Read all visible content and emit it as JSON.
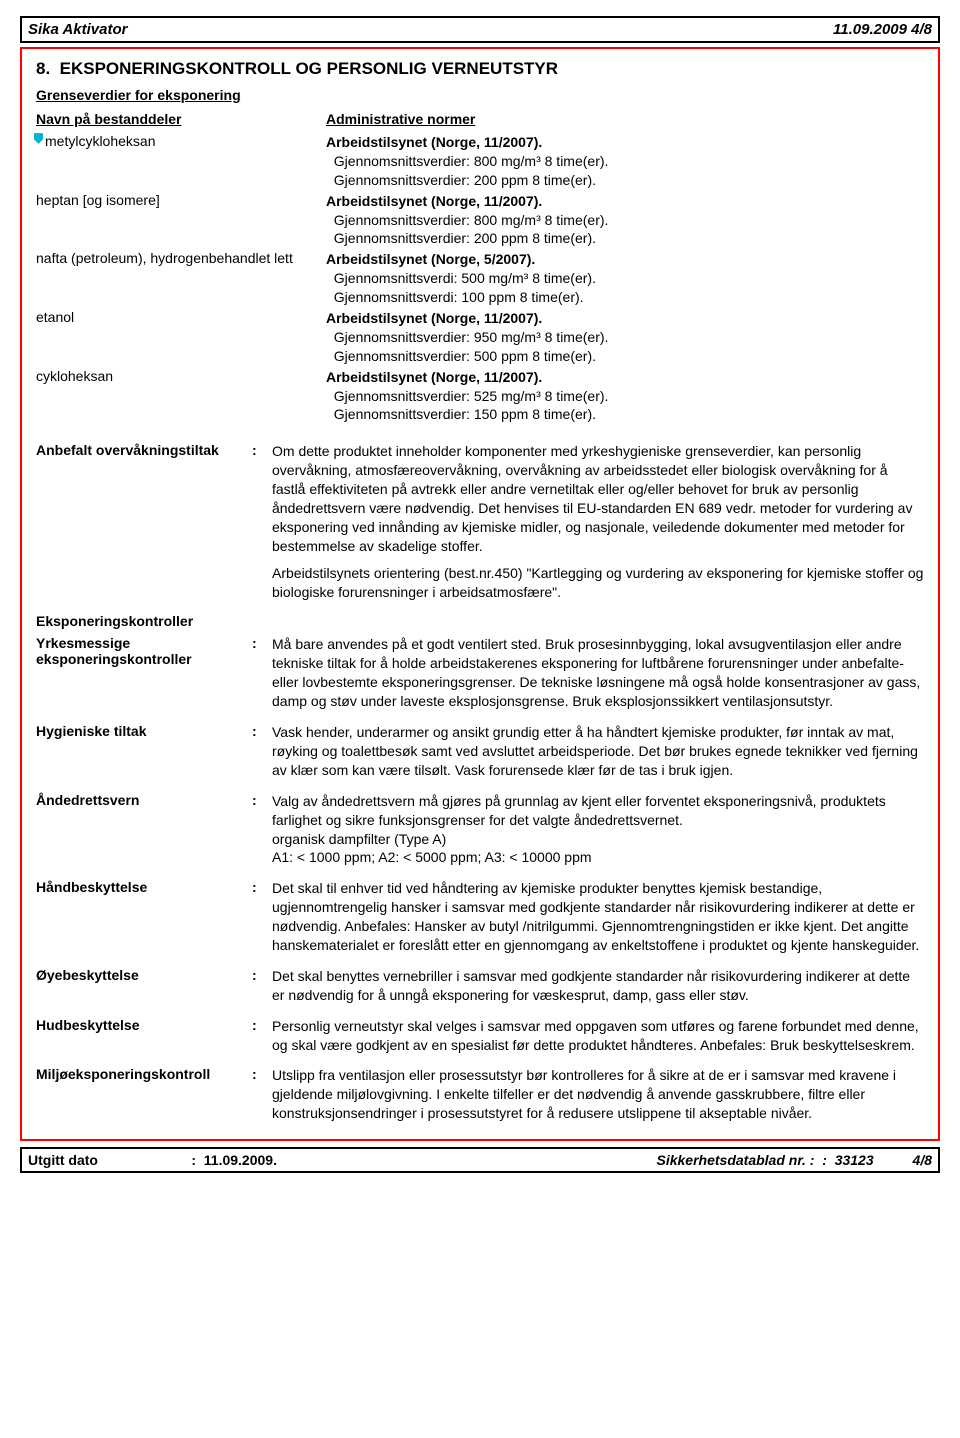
{
  "header": {
    "product": "Sika Aktivator",
    "date_page": "11.09.2009  4/8"
  },
  "section": {
    "number": "8.",
    "title": "EKSPONERINGSKONTROLL OG PERSONLIG VERNEUTSTYR",
    "limits_heading": "Grenseverdier for eksponering",
    "col_substance": "Navn på bestanddeler",
    "col_norms": "Administrative normer",
    "substances": [
      {
        "name": "metylcykloheksan",
        "norm_bold": "Arbeidstilsynet (Norge, 11/2007).",
        "lines": [
          "Gjennomsnittsverdier: 800 mg/m³ 8 time(er).",
          "Gjennomsnittsverdier: 200 ppm 8 time(er)."
        ]
      },
      {
        "name": "heptan [og isomere]",
        "norm_bold": "Arbeidstilsynet (Norge, 11/2007).",
        "lines": [
          "Gjennomsnittsverdier: 800 mg/m³ 8 time(er).",
          "Gjennomsnittsverdier: 200 ppm 8 time(er)."
        ]
      },
      {
        "name": "nafta (petroleum), hydrogenbehandlet lett",
        "norm_bold": "Arbeidstilsynet (Norge, 5/2007).",
        "lines": [
          "Gjennomsnittsverdi: 500 mg/m³ 8 time(er).",
          "Gjennomsnittsverdi: 100 ppm 8 time(er)."
        ]
      },
      {
        "name": "etanol",
        "norm_bold": "Arbeidstilsynet (Norge, 11/2007).",
        "lines": [
          "Gjennomsnittsverdier: 950 mg/m³ 8 time(er).",
          "Gjennomsnittsverdier: 500 ppm 8 time(er)."
        ]
      },
      {
        "name": "cykloheksan",
        "norm_bold": "Arbeidstilsynet (Norge, 11/2007).",
        "lines": [
          "Gjennomsnittsverdier: 525 mg/m³ 8 time(er).",
          "Gjennomsnittsverdier: 150 ppm 8 time(er)."
        ]
      }
    ]
  },
  "defs": {
    "monitoring_label": "Anbefalt overvåkningstiltak",
    "monitoring": [
      "Om dette produktet inneholder komponenter med yrkeshygieniske grenseverdier, kan personlig overvåkning, atmosfæreovervåkning, overvåkning av arbeidsstedet eller biologisk overvåkning for å fastlå effektiviteten på avtrekk eller andre vernetiltak eller og/eller behovet for bruk av personlig åndedrettsvern være nødvendig.  Det henvises til EU-standarden EN 689 vedr. metoder for vurdering av eksponering ved innånding av kjemiske midler, og nasjonale, veiledende dokumenter med metoder for bestemmelse av skadelige stoffer.",
      "Arbeidstilsynets orientering (best.nr.450) \"Kartlegging og vurdering av eksponering for kjemiske stoffer og biologiske forurensninger i arbeidsatmosfære\"."
    ],
    "controls_heading": "Eksponeringskontroller",
    "occupational_label": "Yrkesmessige eksponeringskontroller",
    "occupational": "Må bare anvendes på et godt ventilert sted.  Bruk prosesinnbygging, lokal avsugventilasjon eller andre tekniske tiltak for å holde arbeidstakerenes eksponering for luftbårene forurensninger under anbefalte- eller lovbestemte eksponeringsgrenser.  De tekniske løsningene må også holde konsentrasjoner av gass, damp og støv under laveste eksplosjonsgrense.  Bruk eksplosjonssikkert ventilasjonsutstyr.",
    "hygiene_label": "Hygieniske tiltak",
    "hygiene": "Vask hender, underarmer og ansikt grundig etter å ha håndtert kjemiske produkter, før inntak av mat, røyking og toalettbesøk samt ved avsluttet arbeidsperiode.  Det bør brukes egnede teknikker ved fjerning av klær som kan være tilsølt.  Vask forurensede klær før de tas i bruk igjen.",
    "respiratory_label": "Åndedrettsvern",
    "respiratory": "Valg av åndedrettsvern må gjøres på grunnlag av kjent eller forventet eksponeringsnivå, produktets farlighet og sikre funksjonsgrenser for det valgte åndedrettsvernet.\norganisk dampfilter (Type A)\nA1: < 1000 ppm; A2: < 5000 ppm; A3: < 10000 ppm",
    "hand_label": "Håndbeskyttelse",
    "hand": "Det skal til enhver tid ved håndtering av kjemiske produkter benyttes kjemisk bestandige, ugjennomtrengelig hansker i samsvar med godkjente standarder når risikovurdering indikerer at dette er nødvendig.  Anbefales:  Hansker av butyl /nitrilgummi. Gjennomtrengningstiden er ikke kjent. Det angitte hanskematerialet er foreslått etter en gjennomgang av enkeltstoffene i produktet og kjente hanskeguider.",
    "eye_label": "Øyebeskyttelse",
    "eye": "Det skal benyttes vernebriller i samsvar med godkjente standarder når risikovurdering indikerer at dette er nødvendig for å unngå eksponering for væskesprut, damp, gass eller støv.",
    "skin_label": "Hudbeskyttelse",
    "skin": "Personlig verneutstyr skal velges i samsvar med oppgaven som utføres og farene forbundet med denne, og skal være godkjent av en spesialist før dette produktet håndteres.  Anbefales:  Bruk beskyttelseskrem.",
    "env_label": "Miljøeksponeringskontroll",
    "env": "Utslipp fra ventilasjon eller prosessutstyr bør kontrolleres for å sikre at de er i samsvar med kravene i gjeldende miljølovgivning.  I enkelte tilfeller er det nødvendig å anvende gasskrubbere, filtre eller konstruksjonsendringer i prosessutstyret for å redusere utslippene til akseptable nivåer."
  },
  "footer": {
    "issue_label": "Utgitt dato",
    "issue_value": "11.09.2009.",
    "sds_label": "Sikkerhetsdatablad nr. :",
    "sds_value": "33123",
    "page": "4/8"
  },
  "colors": {
    "box_border": "#ff0000",
    "rev_mark": "#00b6c9"
  }
}
